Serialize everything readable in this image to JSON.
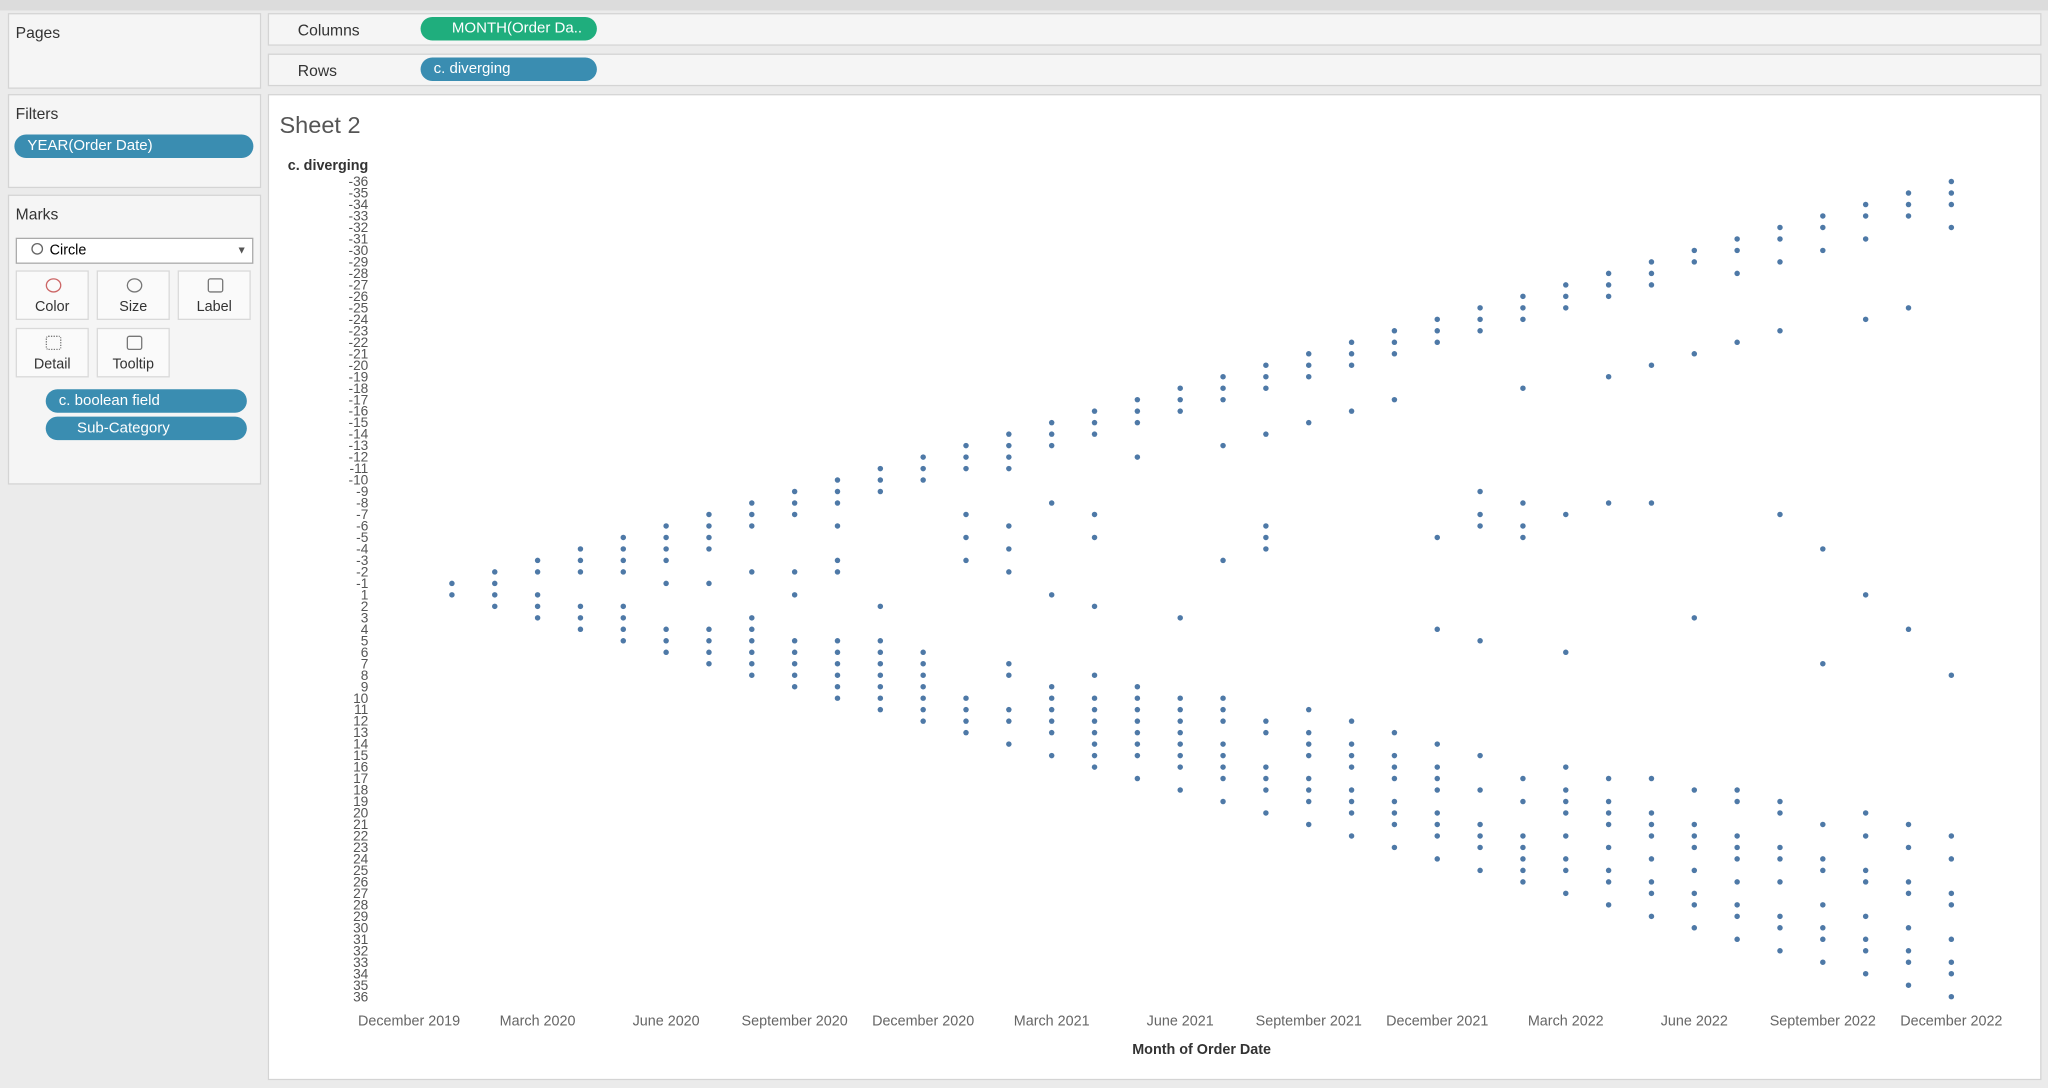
{
  "pages": {
    "title": "Pages"
  },
  "filters": {
    "title": "Filters",
    "pills": [
      "YEAR(Order Date)"
    ]
  },
  "marks": {
    "title": "Marks",
    "mark_type": "Circle",
    "buttons": [
      "Color",
      "Size",
      "Label",
      "Detail",
      "Tooltip"
    ],
    "pills": [
      "c. boolean field",
      "Sub-Category"
    ]
  },
  "shelves": {
    "columns_label": "Columns",
    "columns_pill": "MONTH(Order Da..",
    "rows_label": "Rows",
    "rows_pill": "c. diverging"
  },
  "chart_data": {
    "type": "scatter",
    "title": "Sheet 2",
    "y_label": "c. diverging",
    "x_label": "Month of Order Date",
    "color": "#4e79a7",
    "y_categories": [
      -36,
      -35,
      -34,
      -33,
      -32,
      -31,
      -30,
      -29,
      -28,
      -27,
      -26,
      -25,
      -24,
      -23,
      -22,
      -21,
      -20,
      -19,
      -18,
      -17,
      -16,
      -15,
      -14,
      -13,
      -12,
      -11,
      -10,
      -9,
      -8,
      -7,
      -6,
      -5,
      -4,
      -3,
      -2,
      -1,
      1,
      2,
      3,
      4,
      5,
      6,
      7,
      8,
      9,
      10,
      11,
      12,
      13,
      14,
      15,
      16,
      17,
      18,
      19,
      20,
      21,
      22,
      23,
      24,
      25,
      26,
      27,
      28,
      29,
      30,
      31,
      32,
      33,
      34,
      35,
      36
    ],
    "xticks": [
      {
        "value": "2019-12",
        "label": "December 2019"
      },
      {
        "value": "2020-03",
        "label": "March 2020"
      },
      {
        "value": "2020-06",
        "label": "June 2020"
      },
      {
        "value": "2020-09",
        "label": "September 2020"
      },
      {
        "value": "2020-12",
        "label": "December 2020"
      },
      {
        "value": "2021-03",
        "label": "March 2021"
      },
      {
        "value": "2021-06",
        "label": "June 2021"
      },
      {
        "value": "2021-09",
        "label": "September 2021"
      },
      {
        "value": "2021-12",
        "label": "December 2021"
      },
      {
        "value": "2022-03",
        "label": "March 2022"
      },
      {
        "value": "2022-06",
        "label": "June 2022"
      },
      {
        "value": "2022-09",
        "label": "September 2022"
      },
      {
        "value": "2022-12",
        "label": "December 2022"
      }
    ],
    "x": [
      "2020-01",
      "2020-02",
      "2020-03",
      "2020-04",
      "2020-05",
      "2020-06",
      "2020-07",
      "2020-08",
      "2020-09",
      "2020-10",
      "2020-11",
      "2020-12",
      "2021-01",
      "2021-02",
      "2021-03",
      "2021-04",
      "2021-05",
      "2021-06",
      "2021-07",
      "2021-08",
      "2021-09",
      "2021-10",
      "2021-11",
      "2021-12",
      "2022-01",
      "2022-02",
      "2022-03",
      "2022-04",
      "2022-05",
      "2022-06",
      "2022-07",
      "2022-08",
      "2022-09",
      "2022-10",
      "2022-11",
      "2022-12"
    ],
    "values": [
      [
        -1,
        1
      ],
      [
        -2,
        -1,
        1,
        2
      ],
      [
        -3,
        -2,
        1,
        2,
        3
      ],
      [
        -4,
        -3,
        -2,
        2,
        3,
        4
      ],
      [
        -5,
        -4,
        -3,
        -2,
        2,
        3,
        4,
        5
      ],
      [
        -6,
        -5,
        -4,
        -3,
        -1,
        4,
        5,
        6
      ],
      [
        -7,
        -6,
        -5,
        -4,
        -1,
        4,
        5,
        6,
        7
      ],
      [
        -8,
        -7,
        -6,
        -2,
        3,
        4,
        5,
        6,
        7,
        8
      ],
      [
        -9,
        -8,
        -7,
        -2,
        1,
        5,
        6,
        7,
        8,
        9
      ],
      [
        -10,
        -9,
        -8,
        -6,
        -3,
        -2,
        5,
        6,
        7,
        8,
        9,
        10
      ],
      [
        -11,
        -10,
        -9,
        2,
        5,
        6,
        7,
        8,
        9,
        10,
        11
      ],
      [
        -12,
        -11,
        -10,
        6,
        7,
        8,
        9,
        10,
        11,
        12
      ],
      [
        -13,
        -12,
        -11,
        -7,
        -5,
        -3,
        10,
        11,
        12,
        13
      ],
      [
        -14,
        -13,
        -12,
        -11,
        -6,
        -4,
        -2,
        7,
        8,
        11,
        12,
        14
      ],
      [
        -15,
        -14,
        -13,
        -8,
        1,
        9,
        10,
        11,
        12,
        13,
        15
      ],
      [
        -16,
        -15,
        -14,
        -7,
        -5,
        2,
        8,
        10,
        11,
        12,
        13,
        14,
        15,
        16
      ],
      [
        -17,
        -16,
        -15,
        -12,
        9,
        10,
        11,
        12,
        13,
        14,
        15,
        17
      ],
      [
        -18,
        -17,
        -16,
        3,
        10,
        11,
        12,
        13,
        14,
        15,
        16,
        18
      ],
      [
        -19,
        -18,
        -17,
        -13,
        -3,
        10,
        11,
        12,
        14,
        15,
        16,
        17,
        19
      ],
      [
        -20,
        -19,
        -18,
        -14,
        -6,
        -5,
        -4,
        12,
        13,
        16,
        17,
        18,
        20
      ],
      [
        -21,
        -20,
        -19,
        -15,
        11,
        13,
        14,
        15,
        17,
        18,
        19,
        21
      ],
      [
        -22,
        -21,
        -20,
        -16,
        12,
        14,
        15,
        16,
        18,
        19,
        20,
        22
      ],
      [
        -23,
        -22,
        -21,
        -17,
        13,
        15,
        16,
        17,
        19,
        20,
        21,
        23
      ],
      [
        -24,
        -23,
        -22,
        -5,
        4,
        14,
        16,
        17,
        18,
        20,
        21,
        22,
        24
      ],
      [
        -25,
        -24,
        -23,
        -9,
        -7,
        -6,
        5,
        15,
        18,
        21,
        22,
        23,
        25
      ],
      [
        -26,
        -25,
        -24,
        -18,
        -8,
        -6,
        -5,
        17,
        19,
        22,
        23,
        24,
        25,
        26
      ],
      [
        -27,
        -26,
        -25,
        -7,
        6,
        16,
        18,
        19,
        20,
        22,
        24,
        25,
        27
      ],
      [
        -28,
        -27,
        -26,
        -19,
        -8,
        17,
        19,
        20,
        21,
        23,
        25,
        26,
        28
      ],
      [
        -29,
        -28,
        -27,
        -20,
        -8,
        17,
        20,
        21,
        22,
        24,
        26,
        27,
        29
      ],
      [
        -30,
        -29,
        -21,
        3,
        18,
        21,
        22,
        23,
        25,
        27,
        28,
        30
      ],
      [
        -31,
        -30,
        -28,
        -22,
        18,
        19,
        22,
        23,
        24,
        26,
        28,
        29,
        31
      ],
      [
        -32,
        -31,
        -29,
        -23,
        -7,
        19,
        20,
        23,
        24,
        26,
        29,
        30,
        32
      ],
      [
        -33,
        -32,
        -30,
        -4,
        7,
        21,
        24,
        25,
        28,
        30,
        31,
        33
      ],
      [
        -34,
        -33,
        -31,
        -24,
        1,
        20,
        22,
        25,
        26,
        29,
        31,
        32,
        34
      ],
      [
        -35,
        -34,
        -33,
        -25,
        4,
        21,
        23,
        26,
        27,
        30,
        32,
        33,
        35
      ],
      [
        -36,
        -35,
        -34,
        -32,
        8,
        22,
        24,
        27,
        28,
        31,
        33,
        34,
        36
      ]
    ]
  }
}
